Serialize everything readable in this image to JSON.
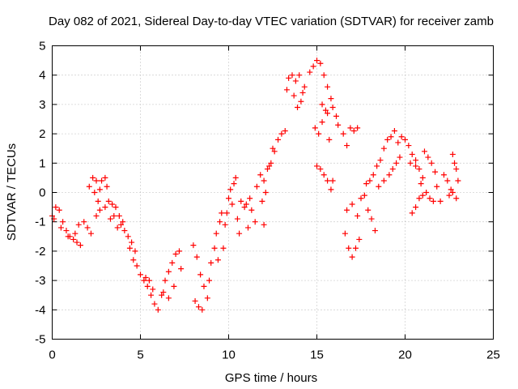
{
  "chart_data": {
    "type": "scatter",
    "title": "Day 082 of 2021, Sidereal Day-to-day VTEC variation (SDTVAR) for receiver zamb",
    "xlabel": "GPS time / hours",
    "ylabel": "SDTVAR / TECUs",
    "xlim": [
      0,
      25
    ],
    "ylim": [
      -5,
      5
    ],
    "xticks": [
      0,
      5,
      10,
      15,
      20,
      25
    ],
    "yticks": [
      -5,
      -4,
      -3,
      -2,
      -1,
      0,
      1,
      2,
      3,
      4,
      5
    ],
    "grid": true,
    "marker": "plus",
    "color": "#ff0000",
    "series": [
      {
        "name": "SDTVAR",
        "points": [
          [
            0.0,
            -0.8
          ],
          [
            0.2,
            -0.5
          ],
          [
            0.4,
            -0.6
          ],
          [
            0.6,
            -1.0
          ],
          [
            0.8,
            -1.3
          ],
          [
            1.0,
            -1.5
          ],
          [
            1.2,
            -1.6
          ],
          [
            1.4,
            -1.7
          ],
          [
            1.6,
            -1.8
          ],
          [
            0.1,
            -0.9
          ],
          [
            0.5,
            -1.2
          ],
          [
            0.9,
            -1.5
          ],
          [
            1.3,
            -1.4
          ],
          [
            1.5,
            -1.1
          ],
          [
            1.8,
            -1.0
          ],
          [
            2.0,
            -1.2
          ],
          [
            2.2,
            -1.4
          ],
          [
            2.1,
            0.2
          ],
          [
            2.3,
            0.5
          ],
          [
            2.5,
            0.4
          ],
          [
            2.7,
            0.1
          ],
          [
            2.4,
            0.0
          ],
          [
            2.6,
            -0.3
          ],
          [
            2.8,
            0.4
          ],
          [
            3.0,
            0.5
          ],
          [
            3.1,
            0.2
          ],
          [
            2.5,
            -0.8
          ],
          [
            2.7,
            -0.6
          ],
          [
            3.0,
            -0.5
          ],
          [
            3.2,
            -0.3
          ],
          [
            3.4,
            -0.4
          ],
          [
            3.6,
            -0.5
          ],
          [
            3.8,
            -0.8
          ],
          [
            4.0,
            -1.0
          ],
          [
            3.3,
            -0.9
          ],
          [
            3.5,
            -0.8
          ],
          [
            3.7,
            -1.2
          ],
          [
            3.9,
            -1.1
          ],
          [
            4.1,
            -1.3
          ],
          [
            4.3,
            -1.5
          ],
          [
            4.5,
            -1.7
          ],
          [
            4.7,
            -2.0
          ],
          [
            4.4,
            -1.9
          ],
          [
            4.6,
            -2.3
          ],
          [
            4.8,
            -2.5
          ],
          [
            5.0,
            -2.8
          ],
          [
            5.2,
            -3.0
          ],
          [
            5.4,
            -3.2
          ],
          [
            5.6,
            -3.5
          ],
          [
            5.8,
            -3.8
          ],
          [
            6.0,
            -4.0
          ],
          [
            5.3,
            -2.9
          ],
          [
            5.5,
            -3.0
          ],
          [
            5.7,
            -3.3
          ],
          [
            6.2,
            -3.5
          ],
          [
            6.4,
            -3.0
          ],
          [
            6.6,
            -2.7
          ],
          [
            6.8,
            -2.4
          ],
          [
            7.0,
            -2.1
          ],
          [
            7.2,
            -2.0
          ],
          [
            6.3,
            -3.4
          ],
          [
            6.6,
            -3.6
          ],
          [
            6.9,
            -3.2
          ],
          [
            7.3,
            -2.6
          ],
          [
            8.0,
            -1.8
          ],
          [
            8.2,
            -2.2
          ],
          [
            8.4,
            -2.8
          ],
          [
            8.6,
            -3.2
          ],
          [
            8.8,
            -3.6
          ],
          [
            8.3,
            -3.9
          ],
          [
            8.1,
            -3.7
          ],
          [
            8.5,
            -4.0
          ],
          [
            8.9,
            -3.0
          ],
          [
            9.0,
            -2.4
          ],
          [
            9.2,
            -1.9
          ],
          [
            9.3,
            -1.4
          ],
          [
            9.4,
            -2.3
          ],
          [
            9.5,
            -1.0
          ],
          [
            9.6,
            -0.7
          ],
          [
            9.8,
            -1.1
          ],
          [
            9.7,
            -1.9
          ],
          [
            9.9,
            -0.7
          ],
          [
            10.0,
            -0.2
          ],
          [
            10.1,
            0.1
          ],
          [
            10.3,
            0.3
          ],
          [
            10.4,
            0.5
          ],
          [
            10.2,
            -0.4
          ],
          [
            10.5,
            -0.9
          ],
          [
            10.6,
            -1.4
          ],
          [
            10.7,
            -0.3
          ],
          [
            10.9,
            -0.5
          ],
          [
            11.0,
            -0.4
          ],
          [
            11.2,
            -0.2
          ],
          [
            11.3,
            -0.6
          ],
          [
            11.1,
            -1.2
          ],
          [
            11.5,
            -1.0
          ],
          [
            11.6,
            0.2
          ],
          [
            11.8,
            0.6
          ],
          [
            12.0,
            0.4
          ],
          [
            12.2,
            0.8
          ],
          [
            12.3,
            0.9
          ],
          [
            12.1,
            0.0
          ],
          [
            11.9,
            -0.3
          ],
          [
            12.0,
            -1.1
          ],
          [
            12.4,
            1.0
          ],
          [
            12.5,
            1.5
          ],
          [
            12.6,
            1.4
          ],
          [
            12.8,
            1.8
          ],
          [
            13.0,
            2.0
          ],
          [
            13.2,
            2.1
          ],
          [
            13.3,
            3.5
          ],
          [
            13.4,
            3.9
          ],
          [
            13.6,
            4.0
          ],
          [
            13.8,
            3.8
          ],
          [
            13.7,
            3.3
          ],
          [
            13.9,
            2.9
          ],
          [
            14.1,
            3.1
          ],
          [
            14.2,
            3.4
          ],
          [
            14.0,
            4.0
          ],
          [
            14.3,
            3.6
          ],
          [
            14.6,
            4.1
          ],
          [
            14.8,
            4.3
          ],
          [
            15.0,
            4.5
          ],
          [
            15.2,
            4.4
          ],
          [
            15.4,
            4.0
          ],
          [
            15.6,
            3.6
          ],
          [
            15.8,
            3.2
          ],
          [
            15.5,
            2.8
          ],
          [
            15.3,
            3.0
          ],
          [
            14.9,
            2.2
          ],
          [
            15.1,
            2.0
          ],
          [
            15.3,
            2.4
          ],
          [
            15.6,
            2.7
          ],
          [
            15.9,
            2.9
          ],
          [
            16.1,
            2.6
          ],
          [
            15.7,
            1.8
          ],
          [
            15.0,
            0.9
          ],
          [
            15.2,
            0.8
          ],
          [
            15.4,
            0.6
          ],
          [
            15.6,
            0.4
          ],
          [
            15.8,
            0.1
          ],
          [
            15.9,
            0.4
          ],
          [
            16.2,
            2.3
          ],
          [
            16.5,
            2.0
          ],
          [
            16.7,
            1.6
          ],
          [
            16.9,
            2.2
          ],
          [
            17.1,
            2.1
          ],
          [
            17.3,
            2.2
          ],
          [
            16.6,
            -1.4
          ],
          [
            16.8,
            -1.9
          ],
          [
            17.0,
            -2.2
          ],
          [
            17.2,
            -1.9
          ],
          [
            17.4,
            -1.6
          ],
          [
            16.7,
            -0.6
          ],
          [
            17.0,
            -0.4
          ],
          [
            17.3,
            -0.8
          ],
          [
            17.5,
            -0.2
          ],
          [
            17.7,
            -0.1
          ],
          [
            17.9,
            -0.6
          ],
          [
            18.1,
            -0.9
          ],
          [
            18.3,
            -1.3
          ],
          [
            17.8,
            0.3
          ],
          [
            18.0,
            0.4
          ],
          [
            18.2,
            0.6
          ],
          [
            18.4,
            0.9
          ],
          [
            18.6,
            1.1
          ],
          [
            18.8,
            1.5
          ],
          [
            19.0,
            1.8
          ],
          [
            19.2,
            1.9
          ],
          [
            19.4,
            2.1
          ],
          [
            18.5,
            0.2
          ],
          [
            18.8,
            0.4
          ],
          [
            19.1,
            0.6
          ],
          [
            19.3,
            0.8
          ],
          [
            19.5,
            1.0
          ],
          [
            19.7,
            1.2
          ],
          [
            19.6,
            1.7
          ],
          [
            19.8,
            1.9
          ],
          [
            20.0,
            1.8
          ],
          [
            20.2,
            1.6
          ],
          [
            20.4,
            1.3
          ],
          [
            20.6,
            1.1
          ],
          [
            20.8,
            0.8
          ],
          [
            21.0,
            0.5
          ],
          [
            20.3,
            1.0
          ],
          [
            20.6,
            0.9
          ],
          [
            20.9,
            0.3
          ],
          [
            21.1,
            1.4
          ],
          [
            21.3,
            1.2
          ],
          [
            21.5,
            1.0
          ],
          [
            21.7,
            0.7
          ],
          [
            20.4,
            -0.7
          ],
          [
            20.6,
            -0.5
          ],
          [
            20.8,
            -0.2
          ],
          [
            21.0,
            -0.1
          ],
          [
            21.2,
            0.0
          ],
          [
            21.4,
            -0.2
          ],
          [
            21.6,
            -0.3
          ],
          [
            21.8,
            0.2
          ],
          [
            22.0,
            -0.3
          ],
          [
            22.2,
            0.6
          ],
          [
            22.4,
            0.4
          ],
          [
            22.6,
            0.1
          ],
          [
            22.8,
            1.0
          ],
          [
            22.7,
            1.3
          ],
          [
            22.9,
            0.8
          ],
          [
            23.0,
            0.4
          ],
          [
            22.5,
            -0.1
          ],
          [
            22.9,
            -0.2
          ],
          [
            22.7,
            0.0
          ]
        ]
      }
    ]
  }
}
